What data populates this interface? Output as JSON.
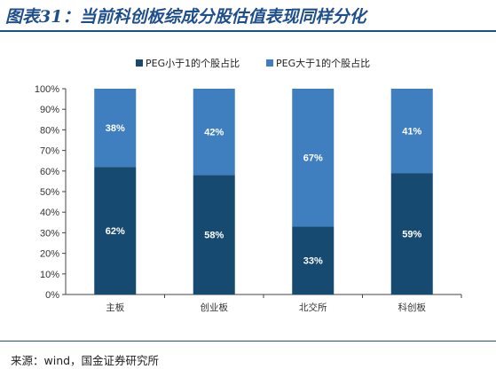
{
  "title": "图表31：当前科创板综成分股估值表现同样分化",
  "source": "来源：wind，国金证券研究所",
  "colors": {
    "series_low": "#164a70",
    "series_high": "#3f7fbf",
    "title": "#1f4e8c"
  },
  "chart_data": {
    "type": "bar",
    "stacked": true,
    "categories": [
      "主板",
      "创业板",
      "北交所",
      "科创板"
    ],
    "series": [
      {
        "name": "PEG小于1的个股占比",
        "values": [
          62,
          58,
          33,
          59
        ],
        "labels": [
          "62%",
          "58%",
          "33%",
          "59%"
        ]
      },
      {
        "name": "PEG大于1的个股占比",
        "values": [
          38,
          42,
          67,
          41
        ],
        "labels": [
          "38%",
          "42%",
          "67%",
          "41%"
        ]
      }
    ],
    "ylim": [
      0,
      100
    ],
    "yticks": [
      "0%",
      "10%",
      "20%",
      "30%",
      "40%",
      "50%",
      "60%",
      "70%",
      "80%",
      "90%",
      "100%"
    ],
    "grid": false,
    "legend_position": "top"
  }
}
